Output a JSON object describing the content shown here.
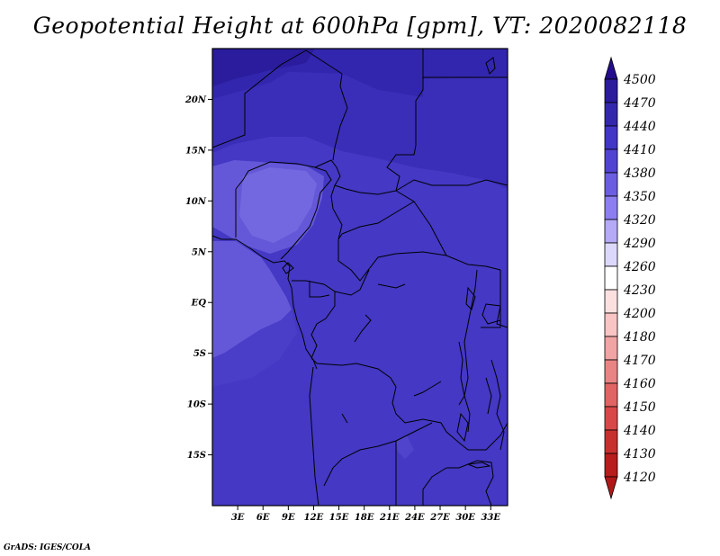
{
  "title": "Geopotential Height at 600hPa [gpm], VT: 2020082118",
  "credit": "GrADS: IGES/COLA",
  "map": {
    "lon_range": [
      0,
      35
    ],
    "lat_range": [
      -20,
      25
    ],
    "lon_ticks": [
      {
        "value": 3,
        "label": "3E"
      },
      {
        "value": 6,
        "label": "6E"
      },
      {
        "value": 9,
        "label": "9E"
      },
      {
        "value": 12,
        "label": "12E"
      },
      {
        "value": 15,
        "label": "15E"
      },
      {
        "value": 18,
        "label": "18E"
      },
      {
        "value": 21,
        "label": "21E"
      },
      {
        "value": 24,
        "label": "24E"
      },
      {
        "value": 27,
        "label": "27E"
      },
      {
        "value": 30,
        "label": "30E"
      },
      {
        "value": 33,
        "label": "33E"
      }
    ],
    "lat_ticks": [
      {
        "value": 20,
        "label": "20N"
      },
      {
        "value": 15,
        "label": "15N"
      },
      {
        "value": 10,
        "label": "10N"
      },
      {
        "value": 5,
        "label": "5N"
      },
      {
        "value": 0,
        "label": "EQ"
      },
      {
        "value": -5,
        "label": "5S"
      },
      {
        "value": -10,
        "label": "10S"
      },
      {
        "value": -15,
        "label": "15S"
      }
    ]
  },
  "colorbar": {
    "levels": [
      {
        "value": "4500",
        "color": "#240c8c"
      },
      {
        "value": "4470",
        "color": "#2a1c9c"
      },
      {
        "value": "4440",
        "color": "#3328ac"
      },
      {
        "value": "4410",
        "color": "#4236c6"
      },
      {
        "value": "4380",
        "color": "#5244d2"
      },
      {
        "value": "4350",
        "color": "#6c5ee0"
      },
      {
        "value": "4320",
        "color": "#8c7ef0"
      },
      {
        "value": "4290",
        "color": "#b4aaf6"
      },
      {
        "value": "4260",
        "color": "#dcd8fc"
      },
      {
        "value": "4230",
        "color": "#ffffff"
      },
      {
        "value": "4200",
        "color": "#fce0e0"
      },
      {
        "value": "4180",
        "color": "#f8c4c4"
      },
      {
        "value": "4170",
        "color": "#f0a4a4"
      },
      {
        "value": "4160",
        "color": "#e88484"
      },
      {
        "value": "4150",
        "color": "#e06464"
      },
      {
        "value": "4140",
        "color": "#d84848"
      },
      {
        "value": "4130",
        "color": "#c83030"
      },
      {
        "value": "4120",
        "color": "#b81c1c"
      }
    ],
    "bottom_color": "#b01818"
  }
}
